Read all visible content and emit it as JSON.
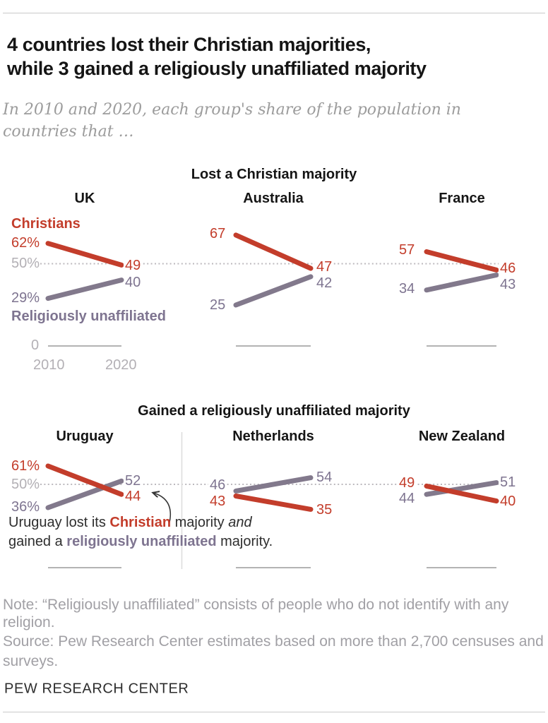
{
  "colors": {
    "christian": "#c33d2b",
    "unaffiliated": "#82798c",
    "axis_gray": "#b3b0b5",
    "note_gray": "#a1a0a5"
  },
  "header": {
    "title_line1": "4 countries lost their Christian majorities,",
    "title_line2": "while 3 gained a religiously unaffiliated majority",
    "subtitle_line1": "In 2010 and 2020, each group's share of the population in",
    "subtitle_line2": "countries that …"
  },
  "legend": {
    "christians": "Christians",
    "unaffiliated": "Religiously unaffiliated"
  },
  "axis": {
    "zero": "0",
    "fifty": "50%",
    "year_start": "2010",
    "year_end": "2020"
  },
  "chart_data": [
    {
      "type": "line",
      "variant": "slope",
      "title": "Lost a Christian majority",
      "x": [
        "2010",
        "2020"
      ],
      "gridline_value": 50,
      "ylim": [
        0,
        80
      ],
      "panels": [
        {
          "country": "UK",
          "series": [
            {
              "name": "Christians",
              "color": "christian",
              "values": [
                62,
                49
              ],
              "labels": [
                "62%",
                "49"
              ]
            },
            {
              "name": "Religiously unaffiliated",
              "color": "unaffiliated",
              "values": [
                29,
                40
              ],
              "labels": [
                "29%",
                "40"
              ]
            }
          ]
        },
        {
          "country": "Australia",
          "series": [
            {
              "name": "Christians",
              "color": "christian",
              "values": [
                67,
                47
              ],
              "labels": [
                "67",
                "47"
              ]
            },
            {
              "name": "Religiously unaffiliated",
              "color": "unaffiliated",
              "values": [
                25,
                42
              ],
              "labels": [
                "25",
                "42"
              ]
            }
          ]
        },
        {
          "country": "France",
          "series": [
            {
              "name": "Christians",
              "color": "christian",
              "values": [
                57,
                46
              ],
              "labels": [
                "57",
                "46"
              ]
            },
            {
              "name": "Religiously unaffiliated",
              "color": "unaffiliated",
              "values": [
                34,
                43
              ],
              "labels": [
                "34",
                "43"
              ]
            }
          ]
        }
      ]
    },
    {
      "type": "line",
      "variant": "slope",
      "title": "Gained a religiously unaffiliated majority",
      "x": [
        "2010",
        "2020"
      ],
      "gridline_value": 50,
      "ylim": [
        0,
        80
      ],
      "panels": [
        {
          "country": "Uruguay",
          "series": [
            {
              "name": "Christians",
              "color": "christian",
              "values": [
                61,
                44
              ],
              "labels": [
                "61%",
                "44"
              ]
            },
            {
              "name": "Religiously unaffiliated",
              "color": "unaffiliated",
              "values": [
                36,
                52
              ],
              "labels": [
                "36%",
                "52"
              ]
            }
          ]
        },
        {
          "country": "Netherlands",
          "series": [
            {
              "name": "Christians",
              "color": "christian",
              "values": [
                43,
                35
              ],
              "labels": [
                "43",
                "35"
              ]
            },
            {
              "name": "Religiously unaffiliated",
              "color": "unaffiliated",
              "values": [
                46,
                54
              ],
              "labels": [
                "46",
                "54"
              ]
            }
          ]
        },
        {
          "country": "New Zealand",
          "series": [
            {
              "name": "Christians",
              "color": "christian",
              "values": [
                49,
                40
              ],
              "labels": [
                "49",
                "40"
              ]
            },
            {
              "name": "Religiously unaffiliated",
              "color": "unaffiliated",
              "values": [
                44,
                51
              ],
              "labels": [
                "44",
                "51"
              ]
            }
          ]
        }
      ],
      "annotation": {
        "l1a": "Uruguay lost its ",
        "l1b": "Christian",
        "l1c": " majority ",
        "l1d": "and",
        "l2a": "gained a ",
        "l2b": "religiously unaffiliated",
        "l2c": " majority."
      }
    }
  ],
  "footer": {
    "note_line1": "Note: “Religiously unaffiliated” consists of people who do not identify with any",
    "note_line2": "religion.",
    "source_line1": "Source: Pew Research Center estimates based on more than 2,700 censuses and",
    "source_line2": "surveys.",
    "brand": "PEW RESEARCH CENTER"
  }
}
